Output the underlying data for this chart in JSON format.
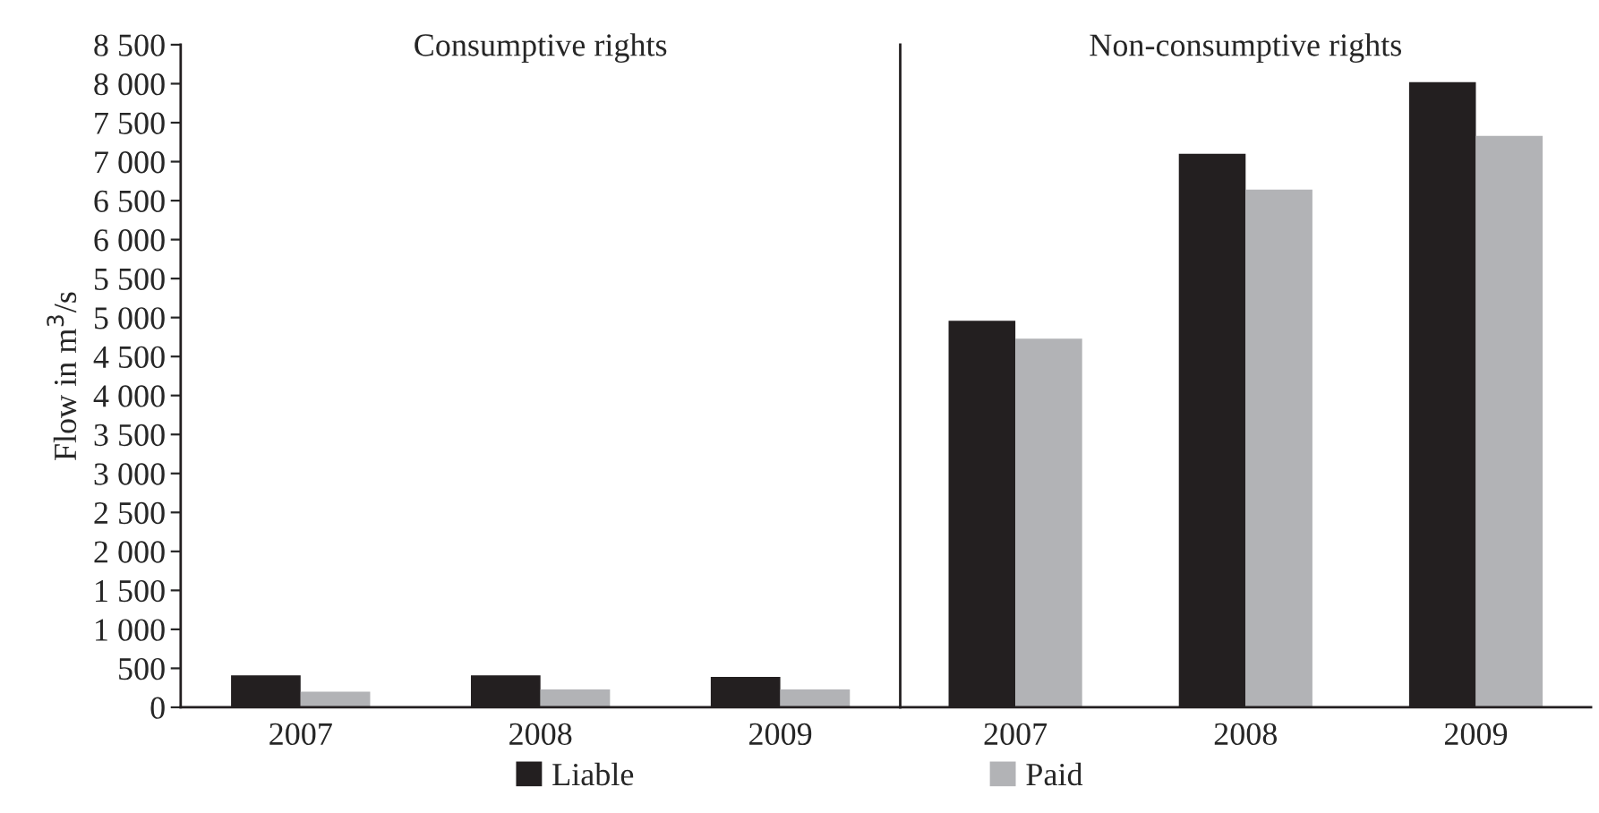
{
  "chart_data": [
    {
      "type": "bar",
      "title": "Consumptive rights",
      "ylabel": "Flow in m$^{3}$/s",
      "categories": [
        "2007",
        "2008",
        "2009"
      ],
      "series": [
        {
          "name": "Liable",
          "color": "#231f20",
          "values": [
            410,
            410,
            390
          ]
        },
        {
          "name": "Paid",
          "color": "#b2b3b6",
          "values": [
            200,
            230,
            230
          ]
        }
      ],
      "ylim": [
        0,
        8500
      ],
      "yticks": [
        0,
        500,
        {
          "value": 1000,
          "label": "1 000"
        },
        {
          "value": 1500,
          "label": "1 500"
        },
        {
          "value": 2000,
          "label": "2 000"
        },
        {
          "value": 2500,
          "label": "2 500"
        },
        {
          "value": 3000,
          "label": "3 000"
        },
        {
          "value": 3500,
          "label": "3 500"
        },
        {
          "value": 4000,
          "label": "4 000"
        },
        {
          "value": 4500,
          "label": "4 500"
        },
        {
          "value": 5000,
          "label": "5 000"
        },
        {
          "value": 5500,
          "label": "5 500"
        },
        {
          "value": 6000,
          "label": "6 000"
        },
        {
          "value": 6500,
          "label": "6 500"
        },
        {
          "value": 7000,
          "label": "7 000"
        },
        {
          "value": 7500,
          "label": "7 500"
        },
        {
          "value": 8000,
          "label": "8 000"
        },
        {
          "value": 8500,
          "label": "8 500"
        }
      ],
      "legend": "bottom"
    },
    {
      "type": "bar",
      "title": "Non-consumptive rights",
      "categories": [
        "2007",
        "2008",
        "2009"
      ],
      "series": [
        {
          "color": "#231f20",
          "values": [
            4960,
            7100,
            8020
          ]
        },
        {
          "color": "#b2b3b6",
          "values": [
            4730,
            6640,
            7330
          ]
        }
      ],
      "ylim": [
        0,
        8500
      ],
      "tick_labels": "x"
    }
  ]
}
